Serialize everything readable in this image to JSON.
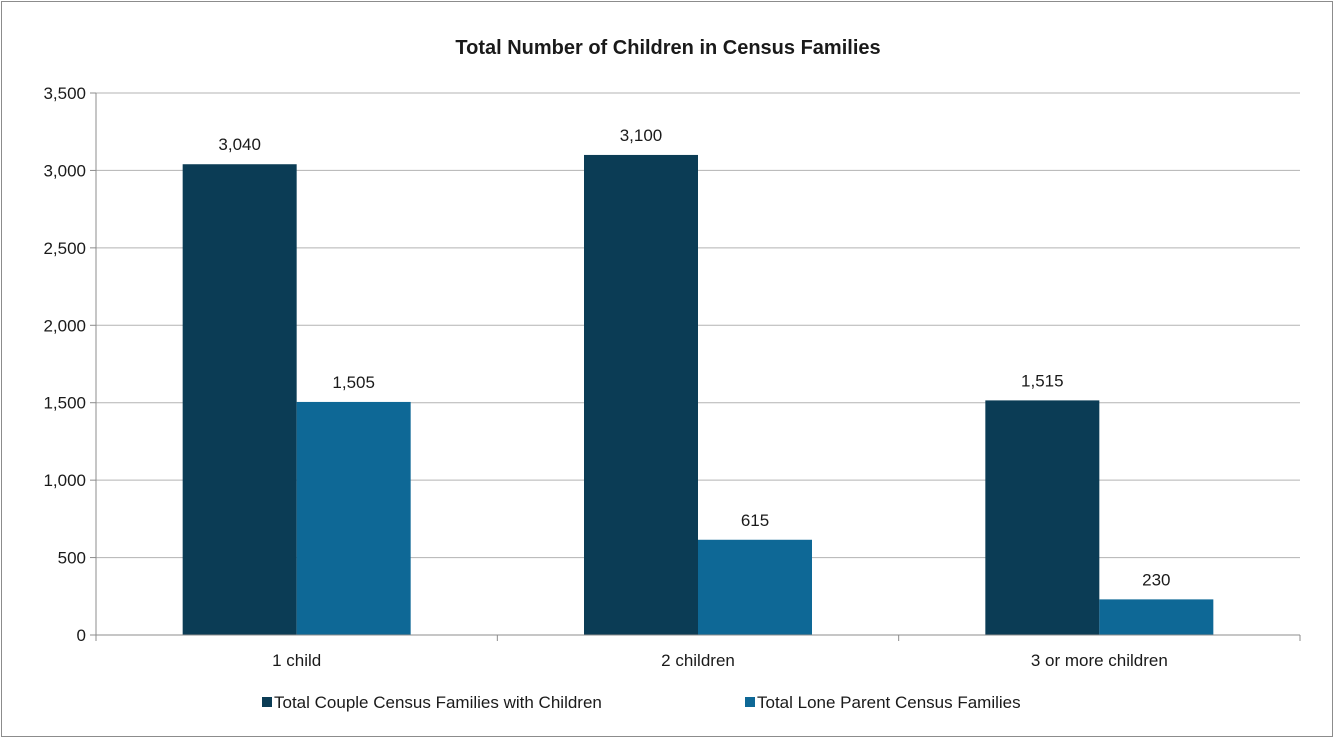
{
  "chart_data": {
    "type": "bar",
    "title": "Total Number of Children in Census Families",
    "xlabel": "",
    "ylabel": "",
    "categories": [
      "1 child",
      "2 children",
      "3 or more children"
    ],
    "series": [
      {
        "name": "Total Couple Census Families with Children",
        "values": [
          3040,
          3100,
          1515
        ],
        "labels": [
          "3,040",
          "3,100",
          "1,515"
        ],
        "color": "#0b3c55"
      },
      {
        "name": "Total Lone Parent Census Families",
        "values": [
          1505,
          615,
          230
        ],
        "labels": [
          "1,505",
          "615",
          "230"
        ],
        "color": "#0e6896"
      }
    ],
    "ylim": [
      0,
      3500
    ],
    "yticks": [
      0,
      500,
      1000,
      1500,
      2000,
      2500,
      3000,
      3500
    ],
    "ytick_labels": [
      "0",
      "500",
      "1,000",
      "1,500",
      "2,000",
      "2,500",
      "3,000",
      "3,500"
    ],
    "grid": true,
    "legend_position": "bottom",
    "colors": {
      "gridline": "#b3b3b3",
      "axis": "#8c8c8c"
    }
  }
}
